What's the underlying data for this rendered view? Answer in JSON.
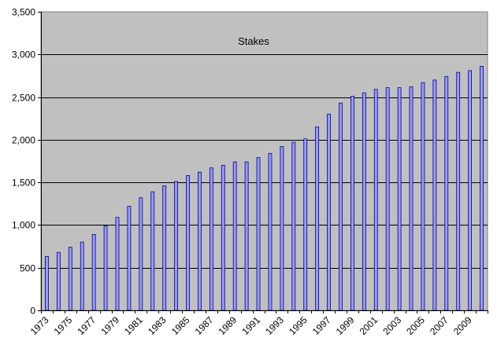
{
  "chart_data": {
    "type": "bar",
    "title": "Stakes",
    "xlabel": "",
    "ylabel": "",
    "ylim": [
      0,
      3500
    ],
    "yticks": [
      0,
      500,
      1000,
      1500,
      2000,
      2500,
      3000,
      3500
    ],
    "ytick_labels": [
      "0",
      "500",
      "1,000",
      "1,500",
      "2,000",
      "2,500",
      "3,000",
      "3,500"
    ],
    "grid": true,
    "legend": "none",
    "categories": [
      "1973",
      "1974",
      "1975",
      "1976",
      "1977",
      "1978",
      "1979",
      "1980",
      "1981",
      "1982",
      "1983",
      "1984",
      "1985",
      "1986",
      "1987",
      "1988",
      "1989",
      "1990",
      "1991",
      "1992",
      "1993",
      "1994",
      "1995",
      "1996",
      "1997",
      "1998",
      "1999",
      "2000",
      "2001",
      "2002",
      "2003",
      "2004",
      "2005",
      "2006",
      "2007",
      "2008",
      "2009",
      "2010"
    ],
    "xtick_labels": [
      "1973",
      "1975",
      "1977",
      "1979",
      "1981",
      "1983",
      "1985",
      "1987",
      "1989",
      "1991",
      "1993",
      "1995",
      "1997",
      "1999",
      "2001",
      "2003",
      "2005",
      "2007",
      "2009"
    ],
    "values": [
      630,
      680,
      740,
      800,
      890,
      990,
      1090,
      1220,
      1320,
      1390,
      1460,
      1510,
      1580,
      1620,
      1670,
      1700,
      1740,
      1740,
      1790,
      1840,
      1920,
      1970,
      2010,
      2150,
      2300,
      2430,
      2510,
      2550,
      2590,
      2610,
      2610,
      2620,
      2670,
      2700,
      2740,
      2790,
      2810,
      2860
    ],
    "colors": {
      "plot_background": "#c0c0c0",
      "bar_fill": "#9999ff",
      "bar_stroke": "#000080",
      "gridline": "#000000"
    }
  }
}
